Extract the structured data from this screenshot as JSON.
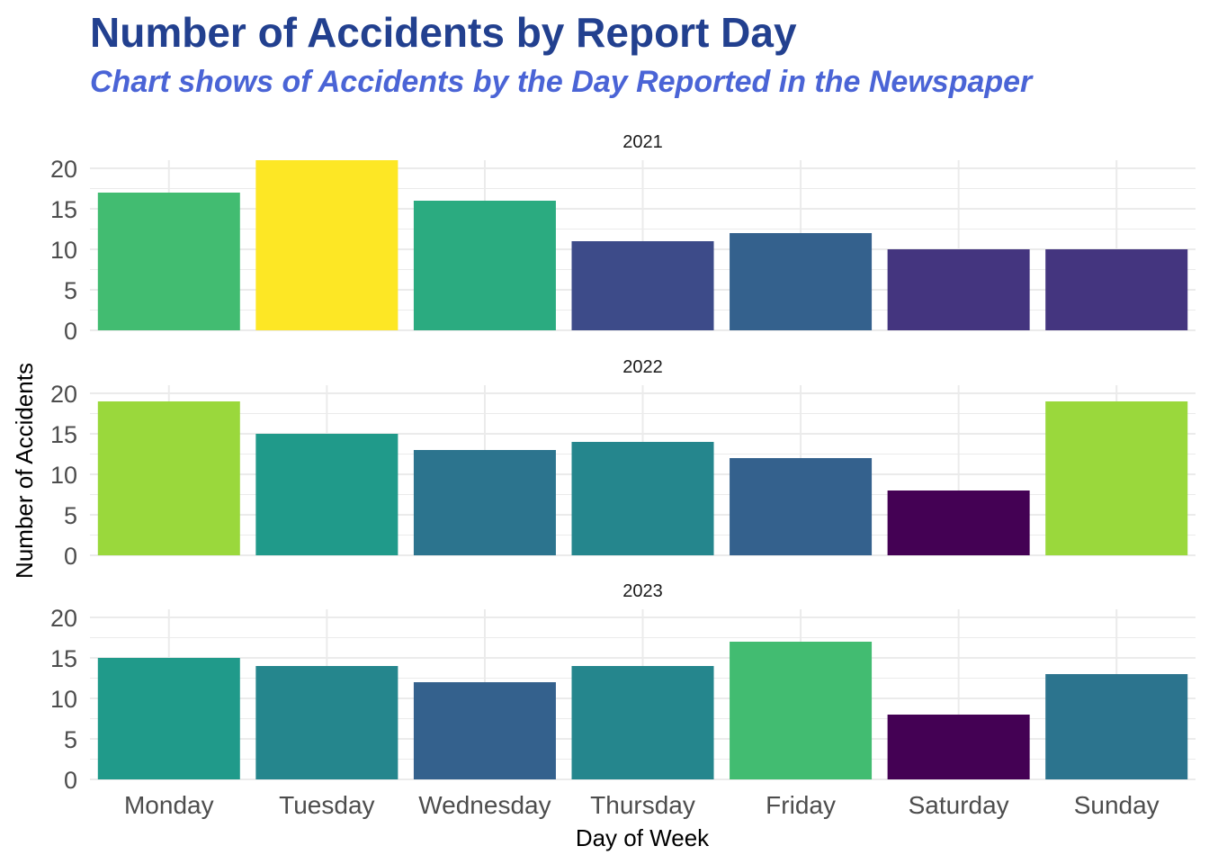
{
  "chart_data": {
    "type": "bar",
    "title": "Number of Accidents by Report Day",
    "subtitle": "Chart shows of Accidents by the Day Reported in the Newspaper",
    "xlabel": "Day of Week",
    "ylabel": "Number of Accidents",
    "categories": [
      "Monday",
      "Tuesday",
      "Wednesday",
      "Thursday",
      "Friday",
      "Saturday",
      "Sunday"
    ],
    "ylim": [
      0,
      21
    ],
    "yticks": [
      0,
      5,
      10,
      15,
      20
    ],
    "grid": true,
    "legend": "none",
    "color_scale": "viridis (fill mapped to count)",
    "facets": [
      {
        "label": "2021",
        "values": [
          17,
          21,
          16,
          11,
          12,
          10,
          10
        ]
      },
      {
        "label": "2022",
        "values": [
          19,
          15,
          13,
          14,
          12,
          8,
          19
        ]
      },
      {
        "label": "2023",
        "values": [
          15,
          14,
          12,
          14,
          17,
          8,
          13
        ]
      }
    ]
  },
  "colors": {
    "title": "#22408f",
    "subtitle": "#4a64d6",
    "grid": "#ebebeb"
  }
}
